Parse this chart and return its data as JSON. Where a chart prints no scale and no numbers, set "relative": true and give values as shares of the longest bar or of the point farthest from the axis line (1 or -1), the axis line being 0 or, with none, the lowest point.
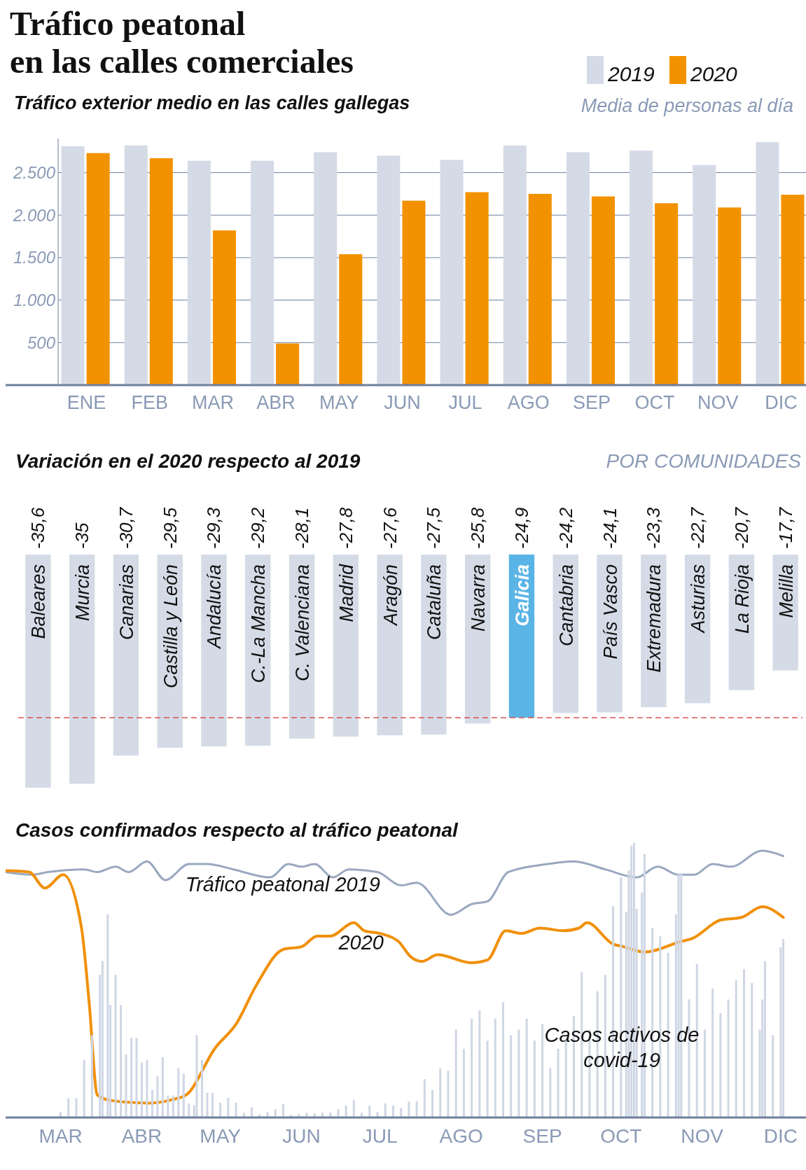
{
  "chart_data": [
    {
      "type": "bar",
      "title": "Tráfico peatonal\nen las calles comerciales",
      "subtitle": "Tráfico exterior medio en las calles gallegas",
      "ylabel": "Media de personas al día",
      "categories": [
        "ENE",
        "FEB",
        "MAR",
        "ABR",
        "MAY",
        "JUN",
        "JUL",
        "AGO",
        "SEP",
        "OCT",
        "NOV",
        "DIC"
      ],
      "series": [
        {
          "name": "2019",
          "color": "#d5dbe6",
          "values": [
            2810,
            2820,
            2640,
            2640,
            2740,
            2700,
            2650,
            2820,
            2740,
            2760,
            2590,
            2860
          ]
        },
        {
          "name": "2020",
          "color": "#f39200",
          "values": [
            2730,
            2670,
            1820,
            490,
            1540,
            2170,
            2270,
            2250,
            2220,
            2140,
            2090,
            2240
          ]
        }
      ],
      "ylim": [
        0,
        2900
      ],
      "yticks": [
        {
          "value": 500,
          "label": "500"
        },
        {
          "value": 1000,
          "label": "1.000"
        },
        {
          "value": 1500,
          "label": "1.500"
        },
        {
          "value": 2000,
          "label": "2.000"
        },
        {
          "value": 2500,
          "label": "2.500"
        }
      ],
      "grid": "y",
      "legend": "top right"
    },
    {
      "type": "bar",
      "title": "Variación en el 2020 respecto al 2019",
      "subtitle": "POR COMUNIDADES",
      "categories": [
        "Baleares",
        "Murcia",
        "Canarias",
        "Castilla y León",
        "Andalucía",
        "C.-La Mancha",
        "C. Valenciana",
        "Madrid",
        "Aragón",
        "Cataluña",
        "Navarra",
        "Galicia",
        "Cantabria",
        "País Vasco",
        "Extremadura",
        "Asturias",
        "La Rioja",
        "Melilla"
      ],
      "values": [
        -35.6,
        -35,
        -30.7,
        -29.5,
        -29.3,
        -29.2,
        -28.1,
        -27.8,
        -27.6,
        -27.5,
        -25.8,
        -24.9,
        -24.2,
        -24.1,
        -23.3,
        -22.7,
        -20.7,
        -17.7
      ],
      "value_labels": [
        "-35,6",
        "-35",
        "-30,7",
        "-29,5",
        "-29,3",
        "-29,2",
        "-28,1",
        "-27,8",
        "-27,6",
        "-27,5",
        "-25,8",
        "-24,9",
        "-24,2",
        "-24,1",
        "-23,3",
        "-22,7",
        "-20,7",
        "-17,7"
      ],
      "colors": [
        "#d5dbe6",
        "#d5dbe6",
        "#d5dbe6",
        "#d5dbe6",
        "#d5dbe6",
        "#d5dbe6",
        "#d5dbe6",
        "#d5dbe6",
        "#d5dbe6",
        "#d5dbe6",
        "#d5dbe6",
        "#5ab4e5",
        "#d5dbe6",
        "#d5dbe6",
        "#d5dbe6",
        "#d5dbe6",
        "#d5dbe6",
        "#d5dbe6"
      ],
      "ref_lines": [
        {
          "axis": "y",
          "value": -24.9,
          "color": "#d9534f",
          "line_style": "dashed"
        }
      ]
    },
    {
      "type": "line",
      "title": "Casos confirmados respecto al tráfico peatonal",
      "relative": true,
      "xlim": [
        "--02-09",
        "--12-12"
      ],
      "xticks": [
        {
          "value": "--03-01",
          "label": "MAR"
        },
        {
          "value": "--04-01",
          "label": "ABR"
        },
        {
          "value": "--05-01",
          "label": "MAY"
        },
        {
          "value": "--06-01",
          "label": "JUN"
        },
        {
          "value": "--07-01",
          "label": "JUL"
        },
        {
          "value": "--08-01",
          "label": "AGO"
        },
        {
          "value": "--09-01",
          "label": "SEP"
        },
        {
          "value": "--10-01",
          "label": "OCT"
        },
        {
          "value": "--11-01",
          "label": "NOV"
        },
        {
          "value": "--12-01",
          "label": "DIC"
        }
      ],
      "series": [
        {
          "type": "bar",
          "axis": "y2",
          "name": "Casos activos de covid-19",
          "color": "#cfd6e4",
          "x": [
            "--03-01",
            "--03-04",
            "--03-07",
            "--03-10",
            "--03-13",
            "--03-16",
            "--03-17",
            "--03-19",
            "--03-20",
            "--03-22",
            "--03-24",
            "--03-26",
            "--03-28",
            "--03-30",
            "--04-01",
            "--04-03",
            "--04-05",
            "--04-07",
            "--04-09",
            "--04-11",
            "--04-13",
            "--04-15",
            "--04-17",
            "--04-19",
            "--04-21",
            "--04-22",
            "--04-24",
            "--04-26",
            "--04-28",
            "--05-01",
            "--05-04",
            "--05-07",
            "--05-10",
            "--05-13",
            "--05-16",
            "--05-19",
            "--05-22",
            "--05-25",
            "--05-28",
            "--05-31",
            "--06-03",
            "--06-06",
            "--06-09",
            "--06-12",
            "--06-15",
            "--06-18",
            "--06-21",
            "--06-24",
            "--06-27",
            "--06-30",
            "--07-03",
            "--07-06",
            "--07-09",
            "--07-12",
            "--07-15",
            "--07-18",
            "--07-21",
            "--07-24",
            "--07-27",
            "--07-30",
            "--08-02",
            "--08-05",
            "--08-08",
            "--08-11",
            "--08-14",
            "--08-17",
            "--08-20",
            "--08-23",
            "--08-26",
            "--08-29",
            "--09-01",
            "--09-04",
            "--09-07",
            "--09-10",
            "--09-13",
            "--09-16",
            "--09-19",
            "--09-22",
            "--09-25",
            "--09-28",
            "--10-01",
            "--10-03",
            "--10-04",
            "--10-05",
            "--10-06",
            "--10-07",
            "--10-09",
            "--10-10",
            "--10-13",
            "--10-16",
            "--10-19",
            "--10-22",
            "--10-23",
            "--10-24",
            "--10-27",
            "--10-30",
            "--11-02",
            "--11-05",
            "--11-08",
            "--11-11",
            "--11-14",
            "--11-17",
            "--11-20",
            "--11-23",
            "--11-24",
            "--11-25",
            "--11-28",
            "--12-01",
            "--12-02"
          ],
          "values": [
            0.02,
            0.07,
            0.07,
            0.21,
            0.3,
            0.52,
            0.57,
            0.74,
            0.41,
            0.52,
            0.41,
            0.23,
            0.29,
            0.29,
            0.2,
            0.21,
            0.1,
            0.15,
            0.22,
            0.08,
            0.08,
            0.18,
            0.16,
            0.05,
            0.045,
            0.3,
            0.21,
            0.09,
            0.09,
            0.054,
            0.072,
            0.054,
            0.017,
            0.037,
            0.012,
            0.02,
            0.03,
            0.05,
            0.01,
            0.012,
            0.017,
            0.015,
            0.018,
            0.018,
            0.03,
            0.044,
            0.063,
            0.017,
            0.043,
            0.02,
            0.052,
            0.044,
            0.035,
            0.058,
            0.06,
            0.14,
            0.1,
            0.18,
            0.17,
            0.32,
            0.25,
            0.36,
            0.39,
            0.28,
            0.36,
            0.42,
            0.3,
            0.32,
            0.36,
            0.28,
            0.34,
            0.18,
            0.25,
            0.28,
            0.37,
            0.53,
            0.32,
            0.46,
            0.52,
            0.77,
            0.875,
            0.75,
            0.9,
            0.99,
            1,
            0.76,
            0.82,
            0.96,
            0.69,
            0.66,
            0.6,
            0.74,
            0.89,
            0.89,
            0.43,
            0.56,
            0.32,
            0.47,
            0.38,
            0.43,
            0.5,
            0.54,
            0.49,
            0.32,
            0.43,
            0.57,
            0.3,
            0.62,
            0.65
          ]
        },
        {
          "type": "line",
          "name": "Tráfico peatonal 2019",
          "color": "#9aa8c0",
          "x": [
            "--02-09",
            "--02-19",
            "--02-25",
            "--03-10",
            "--03-15",
            "--03-22",
            "--03-27",
            "--04-03",
            "--04-10",
            "--04-19",
            "--04-26",
            "--05-06",
            "--05-20",
            "--05-27",
            "--06-01",
            "--06-06",
            "--06-13",
            "--06-19",
            "--06-30",
            "--07-09",
            "--07-15",
            "--07-28",
            "--08-05",
            "--08-11",
            "--08-19",
            "--09-03",
            "--09-13",
            "--09-25",
            "--10-07",
            "--10-15",
            "--10-23",
            "--10-29",
            "--11-05",
            "--11-12",
            "--11-24",
            "--12-02"
          ],
          "values": [
            0.92,
            0.91,
            0.92,
            0.93,
            0.92,
            0.94,
            0.92,
            0.96,
            0.89,
            0.95,
            0.95,
            0.93,
            0.9,
            0.95,
            0.94,
            0.95,
            0.9,
            0.93,
            0.92,
            0.87,
            0.88,
            0.76,
            0.8,
            0.81,
            0.92,
            0.95,
            0.96,
            0.93,
            0.9,
            0.94,
            0.91,
            0.91,
            0.95,
            0.94,
            1,
            0.98
          ]
        },
        {
          "type": "line",
          "name": "2020",
          "color": "#f0900a",
          "x": [
            "--02-09",
            "--02-18",
            "--02-24",
            "--03-02",
            "--03-09",
            "--03-12",
            "--03-15",
            "--03-20",
            "--04-04",
            "--04-13",
            "--04-18",
            "--04-29",
            "--05-07",
            "--05-15",
            "--05-25",
            "--06-01",
            "--06-07",
            "--06-12",
            "--06-21",
            "--06-25",
            "--07-01",
            "--07-08",
            "--07-13",
            "--07-17",
            "--07-23",
            "--08-05",
            "--08-11",
            "--08-18",
            "--08-24",
            "--08-31",
            "--09-09",
            "--09-15",
            "--09-18",
            "--09-28",
            "--10-02",
            "--10-10",
            "--10-24",
            "--10-28",
            "--11-08",
            "--11-16",
            "--11-24",
            "--12-02"
          ],
          "values": [
            0.925,
            0.92,
            0.86,
            0.91,
            0.71,
            0.42,
            0.085,
            0.064,
            0.054,
            0.068,
            0.085,
            0.26,
            0.35,
            0.5,
            0.63,
            0.64,
            0.68,
            0.68,
            0.73,
            0.7,
            0.69,
            0.66,
            0.6,
            0.585,
            0.61,
            0.58,
            0.59,
            0.7,
            0.69,
            0.71,
            0.7,
            0.71,
            0.73,
            0.65,
            0.64,
            0.62,
            0.66,
            0.67,
            0.74,
            0.75,
            0.79,
            0.75
          ]
        }
      ]
    }
  ]
}
